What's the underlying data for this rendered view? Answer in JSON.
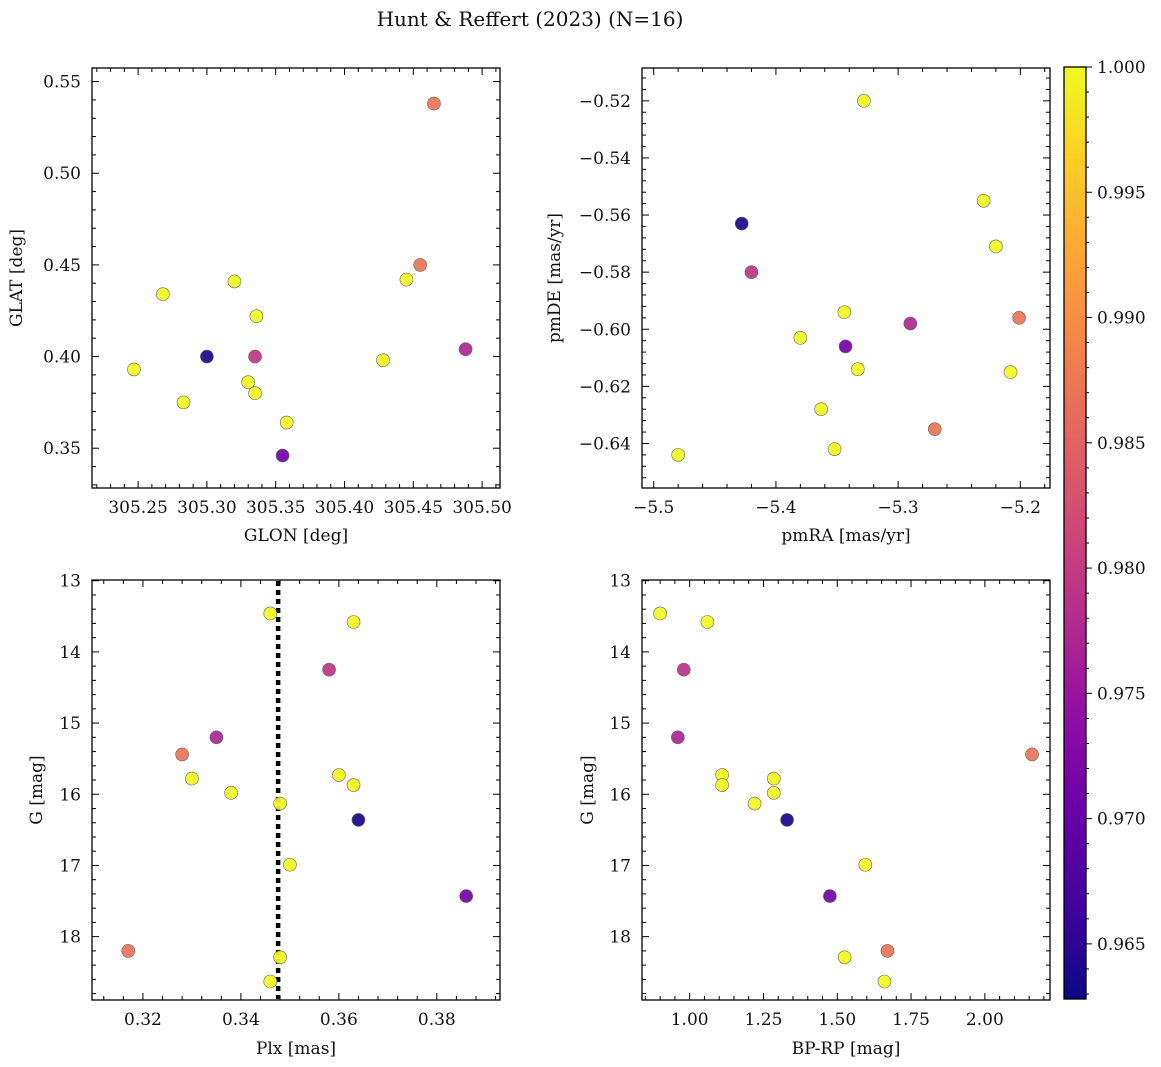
{
  "chart_data": {
    "type": "scatter",
    "title": "Hunt & Reffert (2023) (N=16)",
    "colormap": "plasma",
    "color_range": [
      0.9628,
      1.0
    ],
    "colorbar_ticks": [
      0.965,
      0.97,
      0.975,
      0.98,
      0.985,
      0.99,
      0.995,
      1.0
    ],
    "colorbar_tick_labels": [
      "0.965",
      "0.970",
      "0.975",
      "0.980",
      "0.985",
      "0.990",
      "0.995",
      "1.000"
    ],
    "stars": [
      {
        "glon": 305.465,
        "glat": 0.538,
        "pmra": -5.27,
        "pmde": -0.635,
        "plx": 0.317,
        "g": 18.2,
        "bprp": 1.67,
        "p": 0.987
      },
      {
        "glon": 305.455,
        "glat": 0.45,
        "pmra": -5.201,
        "pmde": -0.596,
        "plx": 0.328,
        "g": 15.44,
        "bprp": 2.16,
        "p": 0.987
      },
      {
        "glon": 305.3,
        "glat": 0.4,
        "pmra": -5.428,
        "pmde": -0.563,
        "plx": 0.364,
        "g": 16.36,
        "bprp": 1.33,
        "p": 0.9635
      },
      {
        "glon": 305.335,
        "glat": 0.4,
        "pmra": -5.42,
        "pmde": -0.58,
        "plx": 0.358,
        "g": 14.25,
        "bprp": 0.98,
        "p": 0.979
      },
      {
        "glon": 305.488,
        "glat": 0.404,
        "pmra": -5.29,
        "pmde": -0.598,
        "plx": 0.335,
        "g": 15.2,
        "bprp": 0.96,
        "p": 0.977
      },
      {
        "glon": 305.355,
        "glat": 0.346,
        "pmra": -5.343,
        "pmde": -0.606,
        "plx": 0.386,
        "g": 17.43,
        "bprp": 1.475,
        "p": 0.971
      },
      {
        "glon": 305.32,
        "glat": 0.441,
        "pmra": -5.328,
        "pmde": -0.52,
        "plx": 0.346,
        "g": 13.46,
        "bprp": 0.9,
        "p": 1.0
      },
      {
        "glon": 305.268,
        "glat": 0.434,
        "pmra": -5.23,
        "pmde": -0.555,
        "plx": 0.363,
        "g": 13.58,
        "bprp": 1.06,
        "p": 1.0
      },
      {
        "glon": 305.336,
        "glat": 0.422,
        "pmra": -5.22,
        "pmde": -0.571,
        "plx": 0.36,
        "g": 15.73,
        "bprp": 1.11,
        "p": 1.0
      },
      {
        "glon": 305.247,
        "glat": 0.393,
        "pmra": -5.344,
        "pmde": -0.594,
        "plx": 0.33,
        "g": 15.78,
        "bprp": 1.285,
        "p": 1.0
      },
      {
        "glon": 305.428,
        "glat": 0.398,
        "pmra": -5.38,
        "pmde": -0.603,
        "plx": 0.363,
        "g": 15.87,
        "bprp": 1.11,
        "p": 1.0
      },
      {
        "glon": 305.445,
        "glat": 0.442,
        "pmra": -5.208,
        "pmde": -0.615,
        "plx": 0.338,
        "g": 15.98,
        "bprp": 1.285,
        "p": 1.0
      },
      {
        "glon": 305.283,
        "glat": 0.375,
        "pmra": -5.333,
        "pmde": -0.614,
        "plx": 0.348,
        "g": 16.13,
        "bprp": 1.22,
        "p": 1.0
      },
      {
        "glon": 305.33,
        "glat": 0.386,
        "pmra": -5.363,
        "pmde": -0.628,
        "plx": 0.35,
        "g": 16.99,
        "bprp": 1.595,
        "p": 1.0
      },
      {
        "glon": 305.335,
        "glat": 0.38,
        "pmra": -5.352,
        "pmde": -0.642,
        "plx": 0.348,
        "g": 18.29,
        "bprp": 1.525,
        "p": 1.0
      },
      {
        "glon": 305.358,
        "glat": 0.364,
        "pmra": -5.48,
        "pmde": -0.644,
        "plx": 0.346,
        "g": 18.63,
        "bprp": 1.66,
        "p": 1.0
      }
    ],
    "panels": [
      {
        "id": "glon-glat",
        "x": "glon",
        "y": "glat",
        "xlabel": "GLON [deg]",
        "ylabel": "GLAT [deg]",
        "xlim": [
          305.2165,
          305.513
        ],
        "ylim": [
          0.3283,
          0.5574
        ],
        "invert_y": false,
        "xticks": [
          305.25,
          305.3,
          305.35,
          305.4,
          305.45,
          305.5
        ],
        "xtick_labels": [
          "305.25",
          "305.30",
          "305.35",
          "305.40",
          "305.45",
          "305.50"
        ],
        "yticks": [
          0.35,
          0.4,
          0.45,
          0.5,
          0.55
        ],
        "ytick_labels": [
          "0.35",
          "0.40",
          "0.45",
          "0.50",
          "0.55"
        ]
      },
      {
        "id": "pmra-pmde",
        "x": "pmra",
        "y": "pmde",
        "xlabel": "pmRA [mas/yr]",
        "ylabel": "pmDE [mas/yr]",
        "xlim": [
          -5.5096,
          -5.1757
        ],
        "ylim": [
          -0.6556,
          -0.5085
        ],
        "invert_y": false,
        "xticks": [
          -5.5,
          -5.4,
          -5.3,
          -5.2
        ],
        "xtick_labels": [
          "−5.5",
          "−5.4",
          "−5.3",
          "−5.2"
        ],
        "yticks": [
          -0.64,
          -0.62,
          -0.6,
          -0.58,
          -0.56,
          -0.54,
          -0.52
        ],
        "ytick_labels": [
          "−0.64",
          "−0.62",
          "−0.60",
          "−0.58",
          "−0.56",
          "−0.54",
          "−0.52"
        ]
      },
      {
        "id": "plx-g",
        "x": "plx",
        "y": "g",
        "xlabel": "Plx [mas]",
        "ylabel": "G [mag]",
        "xlim": [
          0.3096,
          0.3929
        ],
        "ylim": [
          12.99,
          18.89
        ],
        "invert_y": true,
        "vline": 0.3476,
        "xticks": [
          0.32,
          0.34,
          0.36,
          0.38
        ],
        "xtick_labels": [
          "0.32",
          "0.34",
          "0.36",
          "0.38"
        ],
        "yticks": [
          13,
          14,
          15,
          16,
          17,
          18
        ],
        "ytick_labels": [
          "13",
          "14",
          "15",
          "16",
          "17",
          "18"
        ]
      },
      {
        "id": "bprp-g",
        "x": "bprp",
        "y": "g",
        "xlabel": "BP-RP [mag]",
        "ylabel": "G [mag]",
        "xlim": [
          0.8385,
          2.2207
        ],
        "ylim": [
          12.99,
          18.89
        ],
        "invert_y": true,
        "xticks": [
          1.0,
          1.25,
          1.5,
          1.75,
          2.0
        ],
        "xtick_labels": [
          "1.00",
          "1.25",
          "1.50",
          "1.75",
          "2.00"
        ],
        "yticks": [
          13,
          14,
          15,
          16,
          17,
          18
        ],
        "ytick_labels": [
          "13",
          "14",
          "15",
          "16",
          "17",
          "18"
        ]
      }
    ]
  }
}
